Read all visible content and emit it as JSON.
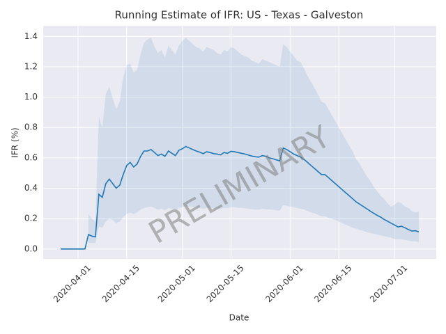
{
  "chart_data": {
    "type": "line",
    "title": "Running Estimate of IFR: US - Texas - Galveston",
    "xlabel": "Date",
    "ylabel": "IFR (%)",
    "watermark": "PRELIMINARY",
    "color": "#1f77b4",
    "band_color": "#1f77b4",
    "grid": true,
    "xlim": [
      "2020-03-22",
      "2020-07-13"
    ],
    "ylim": [
      -0.065,
      1.47
    ],
    "xticks": [
      "2020-04-01",
      "2020-04-15",
      "2020-05-01",
      "2020-05-15",
      "2020-06-01",
      "2020-06-15",
      "2020-07-01"
    ],
    "yticks": [
      {
        "value": 0,
        "label": "0.0"
      },
      0.2,
      0.4,
      0.6,
      0.8,
      {
        "value": 1,
        "label": "1.0"
      },
      1.2,
      1.4
    ],
    "x": [
      "2020-03-27",
      "2020-03-28",
      "2020-03-29",
      "2020-03-30",
      "2020-03-31",
      "2020-04-01",
      "2020-04-02",
      "2020-04-03",
      "2020-04-04",
      "2020-04-05",
      "2020-04-06",
      "2020-04-07",
      "2020-04-08",
      "2020-04-09",
      "2020-04-10",
      "2020-04-11",
      "2020-04-12",
      "2020-04-13",
      "2020-04-14",
      "2020-04-15",
      "2020-04-16",
      "2020-04-17",
      "2020-04-18",
      "2020-04-19",
      "2020-04-20",
      "2020-04-21",
      "2020-04-22",
      "2020-04-23",
      "2020-04-24",
      "2020-04-25",
      "2020-04-26",
      "2020-04-27",
      "2020-04-28",
      "2020-04-29",
      "2020-04-30",
      "2020-05-01",
      "2020-05-02",
      "2020-05-03",
      "2020-05-04",
      "2020-05-05",
      "2020-05-06",
      "2020-05-07",
      "2020-05-08",
      "2020-05-09",
      "2020-05-10",
      "2020-05-11",
      "2020-05-12",
      "2020-05-13",
      "2020-05-14",
      "2020-05-15",
      "2020-05-16",
      "2020-05-17",
      "2020-05-18",
      "2020-05-19",
      "2020-05-20",
      "2020-05-21",
      "2020-05-22",
      "2020-05-23",
      "2020-05-24",
      "2020-05-25",
      "2020-05-26",
      "2020-05-27",
      "2020-05-28",
      "2020-05-29",
      "2020-05-30",
      "2020-05-31",
      "2020-06-01",
      "2020-06-02",
      "2020-06-03",
      "2020-06-04",
      "2020-06-05",
      "2020-06-06",
      "2020-06-07",
      "2020-06-08",
      "2020-06-09",
      "2020-06-10",
      "2020-06-11",
      "2020-06-12",
      "2020-06-13",
      "2020-06-14",
      "2020-06-15",
      "2020-06-16",
      "2020-06-17",
      "2020-06-18",
      "2020-06-19",
      "2020-06-20",
      "2020-06-21",
      "2020-06-22",
      "2020-06-23",
      "2020-06-24",
      "2020-06-25",
      "2020-06-26",
      "2020-06-27",
      "2020-06-28",
      "2020-06-29",
      "2020-06-30",
      "2020-07-01",
      "2020-07-02",
      "2020-07-03",
      "2020-07-04",
      "2020-07-05",
      "2020-07-06",
      "2020-07-07",
      "2020-07-08"
    ],
    "values": [
      0,
      0,
      0,
      0,
      0,
      0,
      0,
      0,
      0.095,
      0.085,
      0.08,
      0.36,
      0.34,
      0.43,
      0.46,
      0.43,
      0.4,
      0.42,
      0.49,
      0.55,
      0.57,
      0.54,
      0.56,
      0.61,
      0.645,
      0.645,
      0.655,
      0.635,
      0.615,
      0.625,
      0.61,
      0.645,
      0.63,
      0.615,
      0.65,
      0.66,
      0.675,
      0.665,
      0.655,
      0.645,
      0.638,
      0.628,
      0.64,
      0.635,
      0.628,
      0.625,
      0.62,
      0.635,
      0.63,
      0.643,
      0.64,
      0.635,
      0.63,
      0.625,
      0.618,
      0.612,
      0.607,
      0.605,
      0.615,
      0.61,
      0.6,
      0.595,
      0.587,
      0.58,
      0.665,
      0.655,
      0.64,
      0.625,
      0.615,
      0.605,
      0.59,
      0.57,
      0.55,
      0.53,
      0.51,
      0.49,
      0.49,
      0.47,
      0.45,
      0.43,
      0.41,
      0.39,
      0.37,
      0.35,
      0.33,
      0.31,
      0.295,
      0.28,
      0.265,
      0.25,
      0.235,
      0.222,
      0.21,
      0.195,
      0.183,
      0.17,
      0.158,
      0.145,
      0.15,
      0.14,
      0.128,
      0.118,
      0.12,
      0.113
    ],
    "upper": [
      null,
      null,
      null,
      null,
      null,
      null,
      null,
      null,
      0.23,
      0.2,
      0.18,
      0.87,
      0.8,
      1.02,
      1.07,
      0.99,
      0.92,
      0.97,
      1.13,
      1.21,
      1.22,
      1.16,
      1.18,
      1.28,
      1.36,
      1.38,
      1.39,
      1.33,
      1.29,
      1.31,
      1.26,
      1.34,
      1.31,
      1.28,
      1.34,
      1.37,
      1.39,
      1.37,
      1.35,
      1.33,
      1.32,
      1.3,
      1.33,
      1.32,
      1.31,
      1.29,
      1.28,
      1.31,
      1.3,
      1.33,
      1.32,
      1.3,
      1.28,
      1.27,
      1.26,
      1.24,
      1.23,
      1.22,
      1.25,
      1.24,
      1.23,
      1.22,
      1.21,
      1.2,
      1.35,
      1.33,
      1.3,
      1.27,
      1.24,
      1.23,
      1.19,
      1.14,
      1.1,
      1.06,
      1.02,
      0.97,
      0.96,
      0.92,
      0.88,
      0.84,
      0.8,
      0.76,
      0.72,
      0.68,
      0.64,
      0.59,
      0.56,
      0.52,
      0.48,
      0.45,
      0.41,
      0.38,
      0.35,
      0.33,
      0.3,
      0.28,
      0.29,
      0.31,
      0.3,
      0.28,
      0.27,
      0.25,
      0.24,
      0.245
    ],
    "lower": [
      null,
      null,
      null,
      null,
      null,
      null,
      null,
      null,
      0.04,
      0.04,
      0.04,
      0.15,
      0.14,
      0.18,
      0.2,
      0.19,
      0.17,
      0.18,
      0.21,
      0.23,
      0.24,
      0.23,
      0.24,
      0.26,
      0.27,
      0.275,
      0.28,
      0.27,
      0.26,
      0.265,
      0.255,
      0.27,
      0.265,
      0.26,
      0.27,
      0.275,
      0.28,
      0.28,
      0.275,
      0.275,
      0.27,
      0.265,
      0.27,
      0.27,
      0.268,
      0.265,
      0.265,
      0.27,
      0.27,
      0.275,
      0.275,
      0.272,
      0.27,
      0.268,
      0.265,
      0.262,
      0.26,
      0.26,
      0.265,
      0.262,
      0.26,
      0.258,
      0.255,
      0.252,
      0.29,
      0.285,
      0.28,
      0.275,
      0.27,
      0.265,
      0.26,
      0.25,
      0.24,
      0.235,
      0.225,
      0.215,
      0.215,
      0.205,
      0.2,
      0.19,
      0.18,
      0.17,
      0.16,
      0.15,
      0.14,
      0.135,
      0.125,
      0.12,
      0.11,
      0.105,
      0.1,
      0.095,
      0.09,
      0.085,
      0.08,
      0.075,
      0.065,
      0.065,
      0.065,
      0.06,
      0.055,
      0.05,
      0.05,
      0.045
    ]
  }
}
